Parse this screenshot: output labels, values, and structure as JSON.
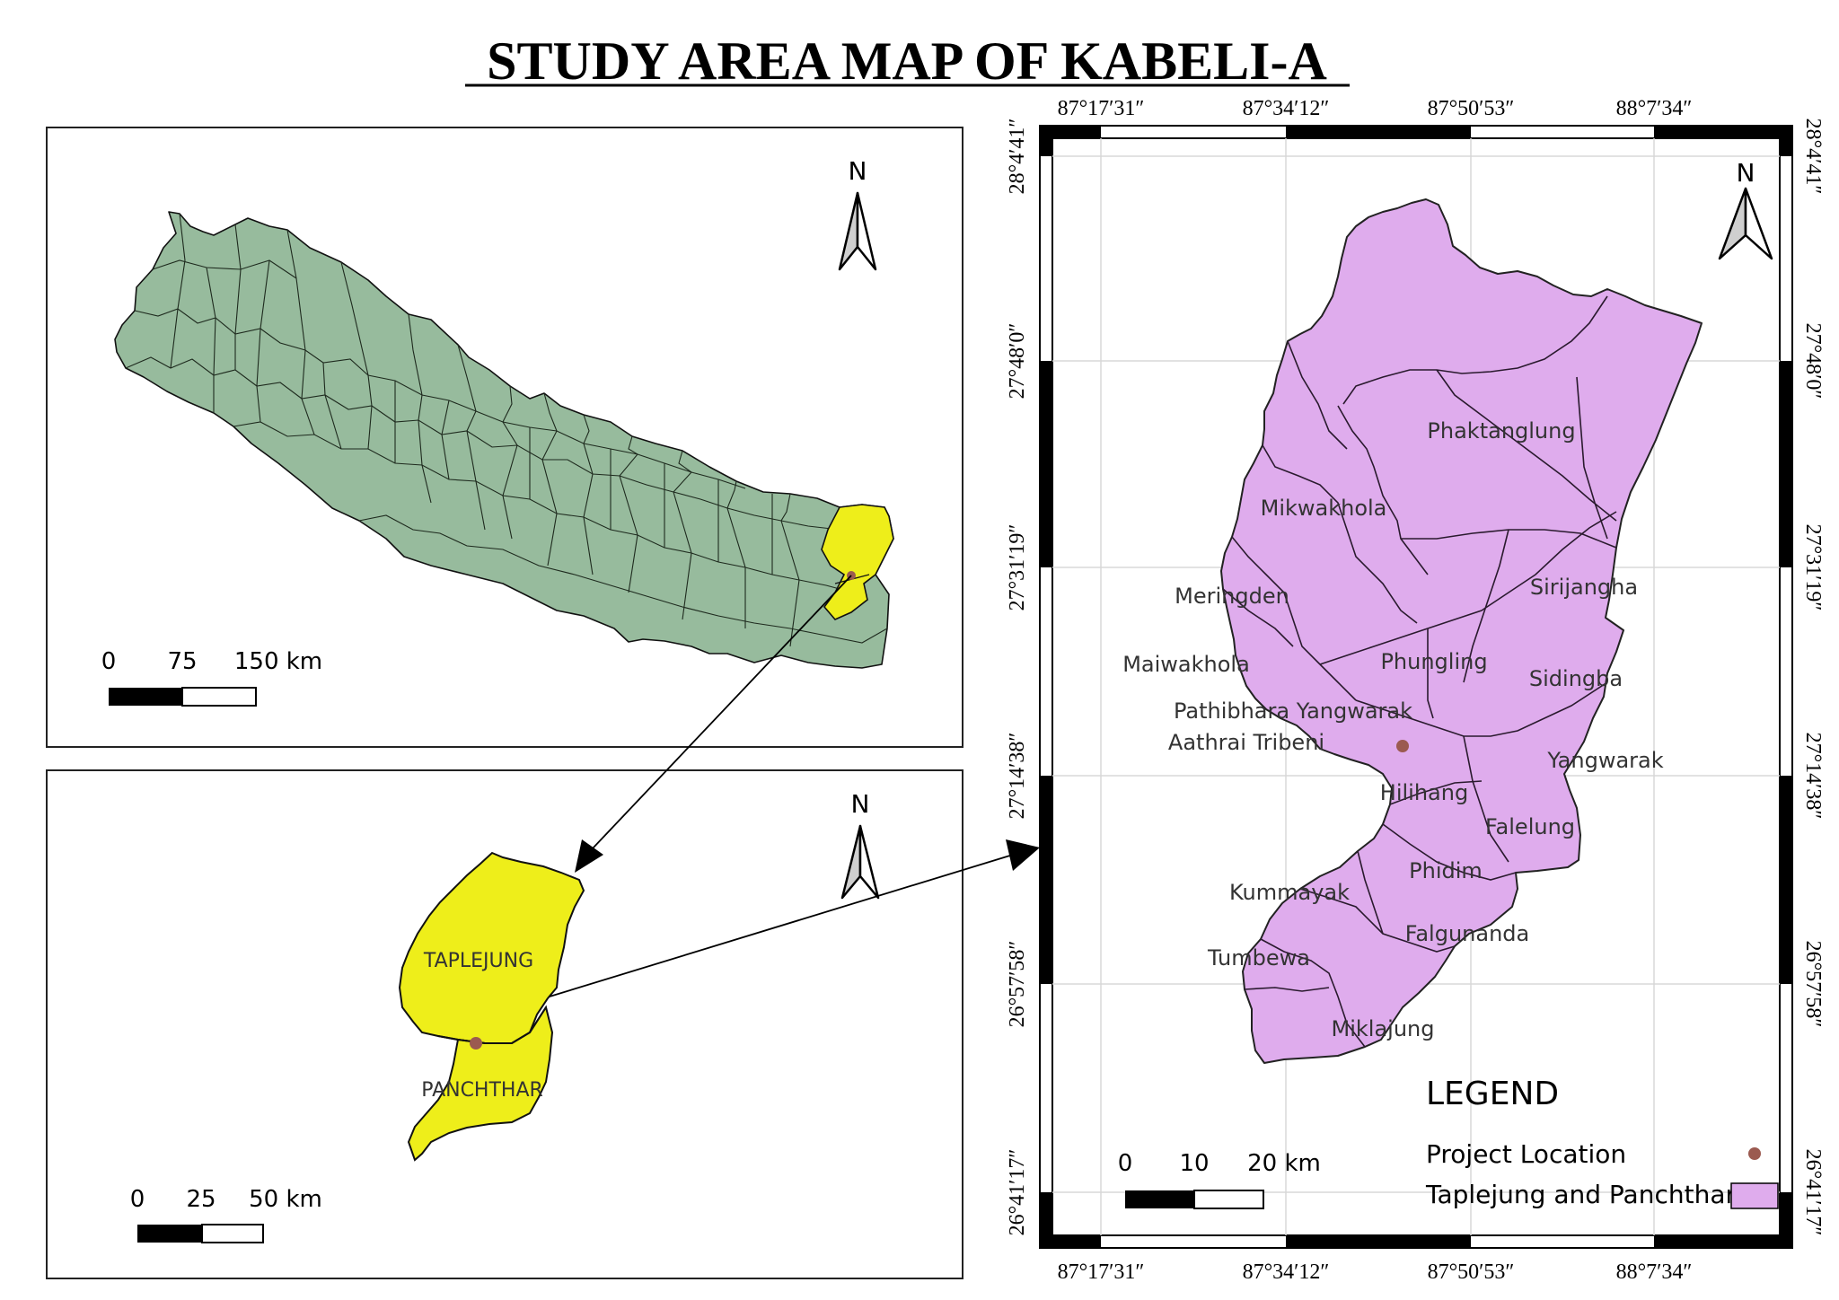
{
  "title": "STUDY AREA MAP OF KABELI-A",
  "north_label": "N",
  "colors": {
    "nepal_fill": "#97bb9d",
    "highlight_fill": "#eeee1a",
    "district_fill": "#dfaced",
    "project_dot": "#9b5a50",
    "outline": "#111111",
    "grid": "#d8d8d8"
  },
  "nepal_panel": {
    "scale": {
      "labels": [
        "0",
        "75",
        "150 km"
      ]
    }
  },
  "district_panel": {
    "labels": {
      "taplejung": "TAPLEJUNG",
      "panchthar": "PANCHTHAR"
    },
    "scale": {
      "labels": [
        "0",
        "25",
        "50 km"
      ]
    }
  },
  "study_panel": {
    "lon_labels": [
      "87°17′31″",
      "87°34′12″",
      "87°50′53″",
      "88°7′34″"
    ],
    "lat_labels": [
      "28°4′41″",
      "27°48′0″",
      "27°31′19″",
      "27°14′38″",
      "26°57′58″",
      "26°41′17″"
    ],
    "municipalities": [
      "Phaktanglung",
      "Mikwakhola",
      "Meringden",
      "Sirijangha",
      "Maiwakhola",
      "Phungling",
      "Sidingba",
      "Pathibhara Yangwarak",
      "Aathrai Tribeni",
      "Yangwarak",
      "Hilihang",
      "Falelung",
      "Phidim",
      "Kummayak",
      "Falgunanda",
      "Tumbewa",
      "Miklajung"
    ],
    "scale": {
      "labels": [
        "0",
        "10",
        "20 km"
      ]
    },
    "legend": {
      "title": "LEGEND",
      "items": [
        {
          "label": "Project  Location",
          "symbol": "dot"
        },
        {
          "label": "Taplejung and Panchthar",
          "symbol": "box"
        }
      ]
    }
  }
}
